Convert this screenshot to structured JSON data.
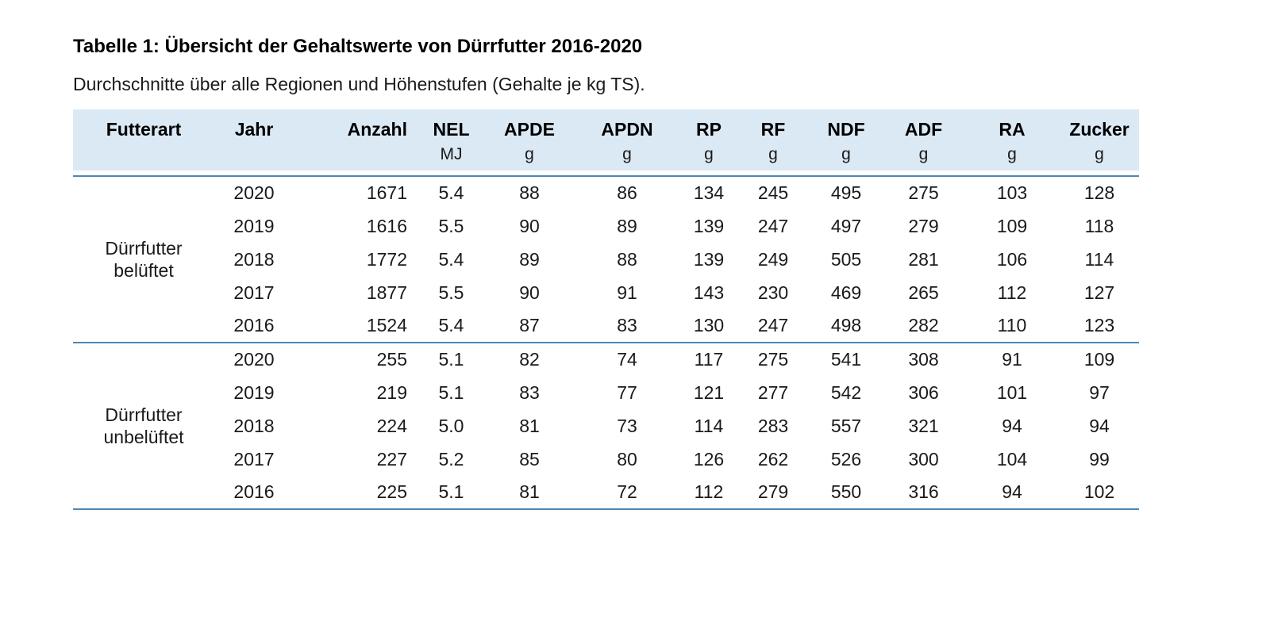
{
  "page": {
    "title": "Tabelle 1: Übersicht der Gehaltswerte von Dürrfutter 2016-2020",
    "subtitle": "Durchschnitte über alle Regionen und Höhenstufen (Gehalte je kg TS)."
  },
  "colors": {
    "header_bg": "#dbe9f5",
    "rule_line": "#4e87b2",
    "text": "#1a1a1a"
  },
  "table": {
    "columns": [
      {
        "key": "futterart",
        "label": "Futterart",
        "unit": ""
      },
      {
        "key": "jahr",
        "label": "Jahr",
        "unit": ""
      },
      {
        "key": "anzahl",
        "label": "Anzahl",
        "unit": ""
      },
      {
        "key": "nel",
        "label": "NEL",
        "unit": "MJ"
      },
      {
        "key": "apde",
        "label": "APDE",
        "unit": "g"
      },
      {
        "key": "apdn",
        "label": "APDN",
        "unit": "g"
      },
      {
        "key": "rp",
        "label": "RP",
        "unit": "g"
      },
      {
        "key": "rf",
        "label": "RF",
        "unit": "g"
      },
      {
        "key": "ndf",
        "label": "NDF",
        "unit": "g"
      },
      {
        "key": "adf",
        "label": "ADF",
        "unit": "g"
      },
      {
        "key": "ra",
        "label": "RA",
        "unit": "g"
      },
      {
        "key": "zucker",
        "label": "Zucker",
        "unit": "g"
      }
    ],
    "groups": [
      {
        "futterart": "Dürrfutter belüftet",
        "rows": [
          [
            "2020",
            "1671",
            "5.4",
            "88",
            "86",
            "134",
            "245",
            "495",
            "275",
            "103",
            "128"
          ],
          [
            "2019",
            "1616",
            "5.5",
            "90",
            "89",
            "139",
            "247",
            "497",
            "279",
            "109",
            "118"
          ],
          [
            "2018",
            "1772",
            "5.4",
            "89",
            "88",
            "139",
            "249",
            "505",
            "281",
            "106",
            "114"
          ],
          [
            "2017",
            "1877",
            "5.5",
            "90",
            "91",
            "143",
            "230",
            "469",
            "265",
            "112",
            "127"
          ],
          [
            "2016",
            "1524",
            "5.4",
            "87",
            "83",
            "130",
            "247",
            "498",
            "282",
            "110",
            "123"
          ]
        ]
      },
      {
        "futterart": "Dürrfutter unbelüftet",
        "rows": [
          [
            "2020",
            "255",
            "5.1",
            "82",
            "74",
            "117",
            "275",
            "541",
            "308",
            "91",
            "109"
          ],
          [
            "2019",
            "219",
            "5.1",
            "83",
            "77",
            "121",
            "277",
            "542",
            "306",
            "101",
            "97"
          ],
          [
            "2018",
            "224",
            "5.0",
            "81",
            "73",
            "114",
            "283",
            "557",
            "321",
            "94",
            "94"
          ],
          [
            "2017",
            "227",
            "5.2",
            "85",
            "80",
            "126",
            "262",
            "526",
            "300",
            "104",
            "99"
          ],
          [
            "2016",
            "225",
            "5.1",
            "81",
            "72",
            "112",
            "279",
            "550",
            "316",
            "94",
            "102"
          ]
        ]
      }
    ]
  }
}
